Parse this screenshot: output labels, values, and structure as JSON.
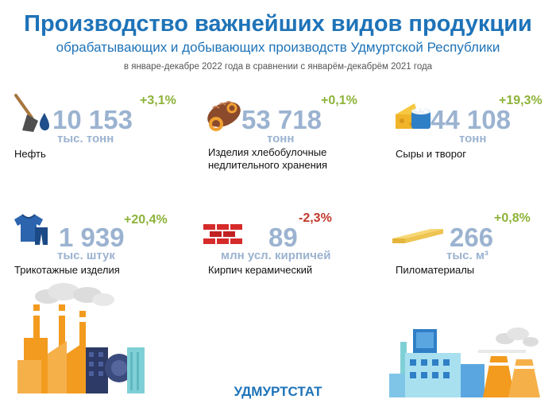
{
  "header": {
    "title": "Производство важнейших видов продукции",
    "subtitle": "обрабатывающих и добывающих производств Удмуртской Республики",
    "period": "в январе-декабре 2022 года в сравнении с январём-декабрём 2021 года"
  },
  "colors": {
    "title": "#1e73b8",
    "value": "#9bb3d0",
    "positive": "#8db33a",
    "negative": "#c0392b"
  },
  "items": [
    {
      "name": "Нефть",
      "value": "10 153",
      "unit": "тыс. тонн",
      "change": "+3,1%",
      "icon": "oil-icon"
    },
    {
      "name": "Изделия хлебобулочные недлительного хранения",
      "value": "53 718",
      "unit": "тонн",
      "change": "+0,1%",
      "icon": "bread-icon"
    },
    {
      "name": "Сыры и творог",
      "value": "44 108",
      "unit": "тонн",
      "change": "+19,3%",
      "icon": "cheese-icon"
    },
    {
      "name": "Трикотажные изделия",
      "value": "1 939",
      "unit": "тыс. штук",
      "change": "+20,4%",
      "icon": "knitwear-icon"
    },
    {
      "name": "Кирпич керамический",
      "value": "89",
      "unit": "млн усл. кирпичей",
      "change": "-2,3%",
      "icon": "brick-icon"
    },
    {
      "name": "Пиломатериалы",
      "value": "266",
      "unit": "тыс. м³",
      "change": "+0,8%",
      "icon": "lumber-icon"
    }
  ],
  "footer": {
    "org": "УДМУРТСТАТ"
  }
}
